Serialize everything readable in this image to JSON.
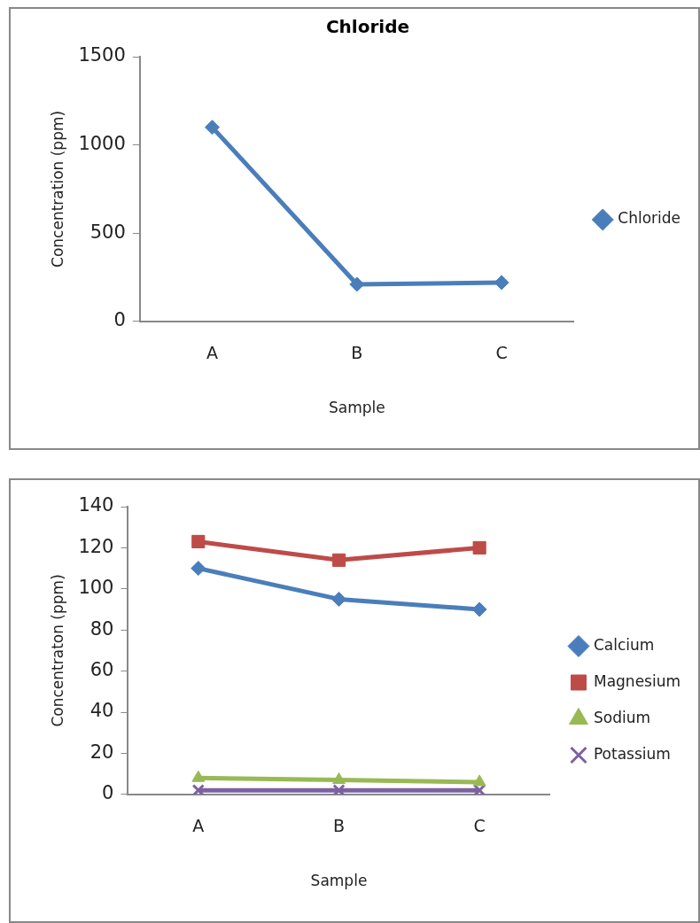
{
  "chart_data": [
    {
      "type": "line",
      "title": "Chloride",
      "xlabel": "Sample",
      "ylabel": "Concentration (ppm)",
      "categories": [
        "A",
        "B",
        "C"
      ],
      "series": [
        {
          "name": "Chloride",
          "color": "#4a7ebb",
          "marker": "diamond",
          "values": [
            1100,
            210,
            220
          ]
        }
      ],
      "ylim": [
        0,
        1500
      ],
      "yticks": [
        0,
        500,
        1000,
        1500
      ],
      "grid": false,
      "legend": "right"
    },
    {
      "type": "line",
      "xlabel": "Sample",
      "ylabel": "Concentraton (ppm)",
      "categories": [
        "A",
        "B",
        "C"
      ],
      "series": [
        {
          "name": "Calcium",
          "color": "#4a7ebb",
          "marker": "diamond",
          "values": [
            110,
            95,
            90
          ]
        },
        {
          "name": "Magnesium",
          "color": "#be4b48",
          "marker": "square",
          "values": [
            123,
            114,
            120
          ]
        },
        {
          "name": "Sodium",
          "color": "#98b954",
          "marker": "triangle",
          "values": [
            8,
            7,
            6
          ]
        },
        {
          "name": "Potassium",
          "color": "#7d60a0",
          "marker": "cross",
          "values": [
            2,
            2,
            2
          ]
        }
      ],
      "ylim": [
        0,
        140
      ],
      "yticks": [
        0,
        20,
        40,
        60,
        80,
        100,
        120,
        140
      ],
      "grid": false,
      "legend": "right"
    }
  ]
}
